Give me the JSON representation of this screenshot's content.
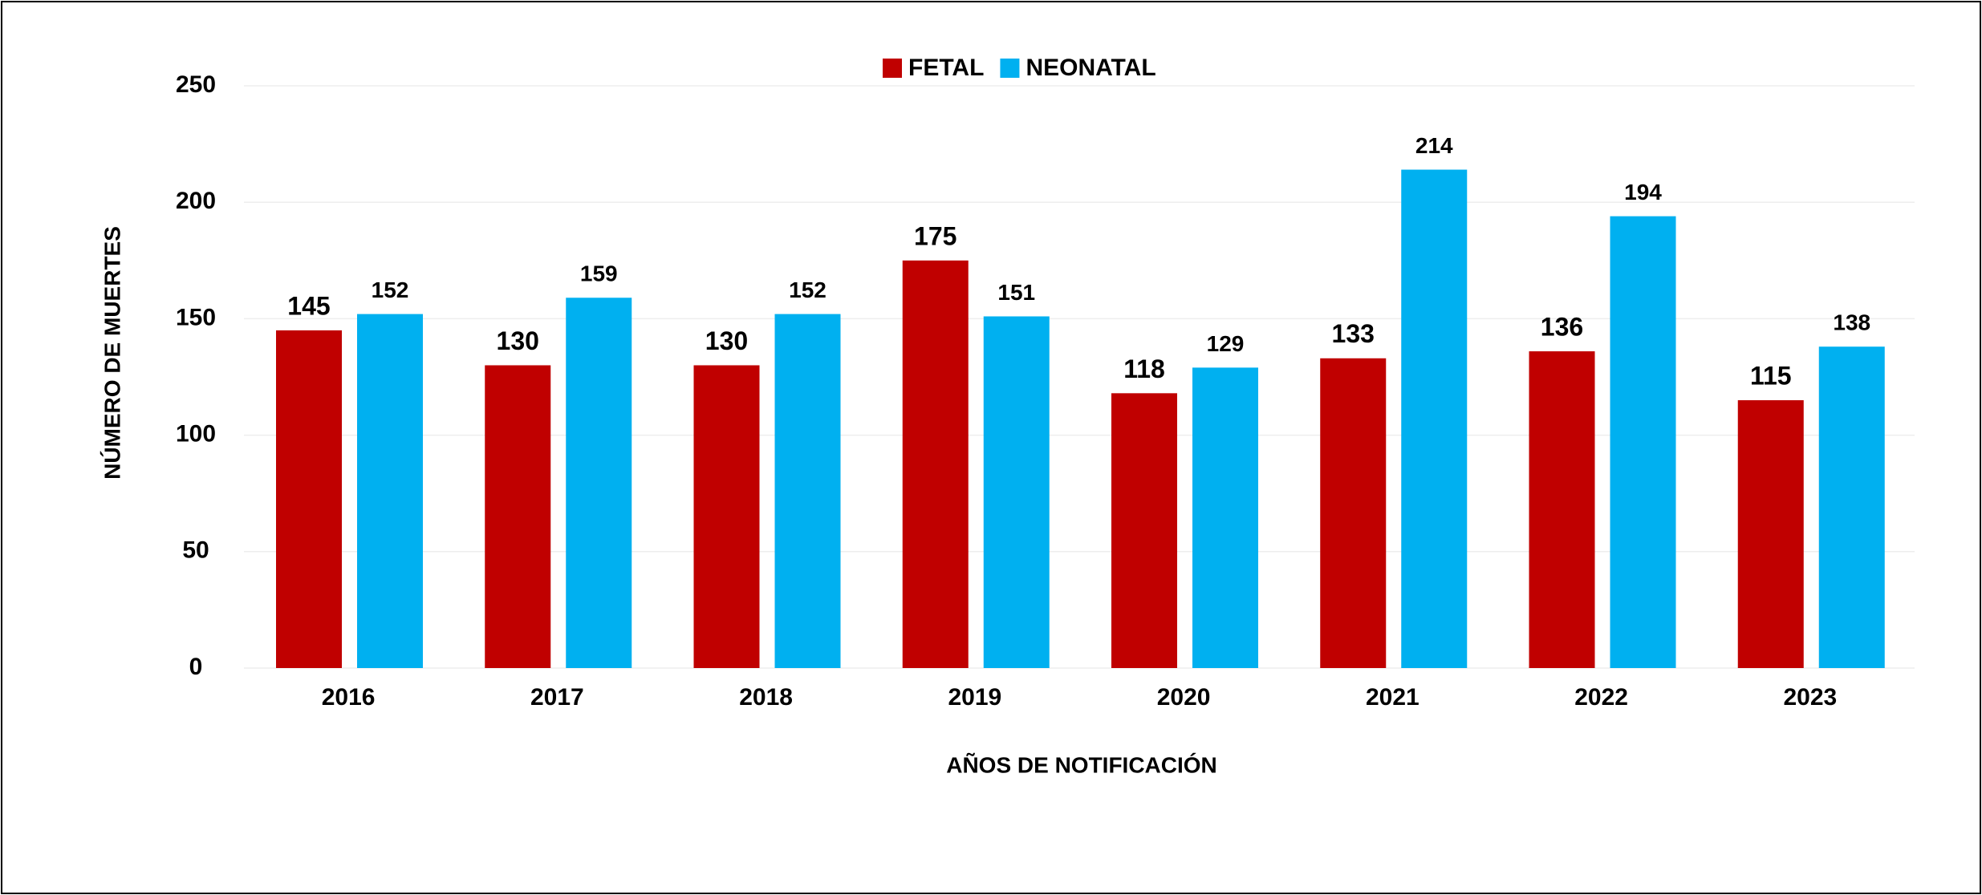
{
  "chart_data": {
    "type": "bar",
    "x_label": "AÑOS DE NOTIFICACIÓN",
    "y_label": "NÚMERO DE MUERTES",
    "categories": [
      "2016",
      "2017",
      "2018",
      "2019",
      "2020",
      "2021",
      "2022",
      "2023"
    ],
    "series": [
      {
        "name": "FETAL",
        "color": "#c00000",
        "values": [
          145,
          130,
          130,
          175,
          118,
          133,
          136,
          115
        ]
      },
      {
        "name": "NEONATAL",
        "color": "#00b0f0",
        "values": [
          152,
          159,
          152,
          151,
          129,
          214,
          194,
          138
        ]
      }
    ],
    "ylim": [
      0,
      250
    ],
    "yticks": [
      0,
      50,
      100,
      150,
      200,
      250
    ],
    "grid": true,
    "legend": "top"
  }
}
